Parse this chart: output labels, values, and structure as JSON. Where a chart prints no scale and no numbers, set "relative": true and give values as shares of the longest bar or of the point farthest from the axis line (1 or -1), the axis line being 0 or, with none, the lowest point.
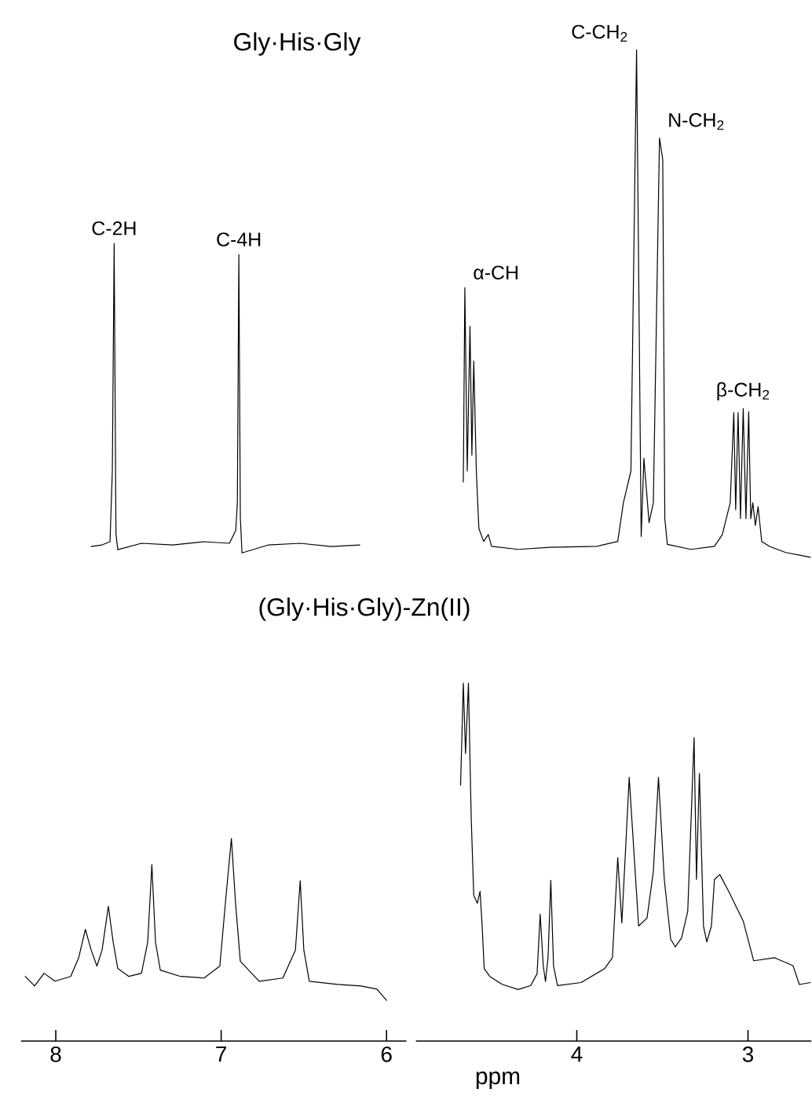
{
  "chart_data": [
    {
      "type": "line",
      "relative": true,
      "xlim": [
        8.21,
        5.88
      ],
      "xticks": [
        8,
        7,
        6
      ],
      "series": [
        {
          "color": "#000000",
          "x": [
            7.786,
            7.72,
            7.672,
            7.658,
            7.647,
            7.636,
            7.625,
            7.482,
            7.292,
            7.103,
            6.95,
            6.912,
            6.902,
            6.893,
            6.884,
            6.874,
            6.713,
            6.523,
            6.333,
            6.162
          ],
          "values": [
            0.62,
            0.622,
            0.626,
            0.715,
            1.0,
            0.636,
            0.616,
            0.624,
            0.622,
            0.626,
            0.624,
            0.64,
            0.675,
            0.986,
            0.656,
            0.612,
            0.622,
            0.624,
            0.62,
            0.622
          ]
        },
        {
          "color": "#000000",
          "x": [
            8.185,
            8.128,
            8.071,
            8.005,
            7.91,
            7.862,
            7.821,
            7.786,
            7.751,
            7.72,
            7.682,
            7.653,
            7.625,
            7.558,
            7.482,
            7.444,
            7.419,
            7.397,
            7.368,
            7.245,
            7.103,
            7.008,
            6.97,
            6.938,
            6.913,
            6.884,
            6.77,
            6.627,
            6.551,
            6.522,
            6.5,
            6.467,
            6.295,
            6.153,
            6.058,
            6.0
          ],
          "values": [
            0.081,
            0.069,
            0.085,
            0.075,
            0.081,
            0.104,
            0.14,
            0.114,
            0.094,
            0.114,
            0.169,
            0.124,
            0.091,
            0.081,
            0.085,
            0.124,
            0.221,
            0.124,
            0.089,
            0.081,
            0.079,
            0.094,
            0.183,
            0.254,
            0.173,
            0.1,
            0.075,
            0.079,
            0.114,
            0.201,
            0.114,
            0.075,
            0.071,
            0.069,
            0.065,
            0.051
          ]
        }
      ],
      "annotations": [
        {
          "text": "C-2H",
          "x": 7.647,
          "y": 1
        },
        {
          "text": "C-4H",
          "x": 6.893,
          "y": 0.986
        },
        "Gly·His·Gly",
        "(Gly·His·Gly)-Zn(II)"
      ]
    },
    {
      "type": "line",
      "xlabel": "ppm",
      "relative": true,
      "xlim": [
        4.94,
        2.63
      ],
      "xticks": [
        4,
        3
      ],
      "series": [
        {
          "color": "#000000",
          "x": [
            4.663,
            4.654,
            4.64,
            4.624,
            4.613,
            4.602,
            4.587,
            4.572,
            4.544,
            4.517,
            4.498,
            4.342,
            4.159,
            3.883,
            3.761,
            3.728,
            3.684,
            3.651,
            3.624,
            3.608,
            3.578,
            3.553,
            3.517,
            3.498,
            3.486,
            3.471,
            3.333,
            3.196,
            3.15,
            3.104,
            3.083,
            3.072,
            3.058,
            3.044,
            3.028,
            3.012,
            2.996,
            2.984,
            2.972,
            2.957,
            2.941,
            2.92,
            2.874,
            2.783,
            2.636
          ],
          "values": [
            0.564,
            0.76,
            0.575,
            0.721,
            0.591,
            0.686,
            0.575,
            0.517,
            0.504,
            0.511,
            0.499,
            0.496,
            0.498,
            0.499,
            0.504,
            0.543,
            0.575,
            1.0,
            0.509,
            0.588,
            0.523,
            0.543,
            0.911,
            0.889,
            0.527,
            0.501,
            0.496,
            0.499,
            0.511,
            0.543,
            0.634,
            0.536,
            0.634,
            0.527,
            0.638,
            0.527,
            0.635,
            0.527,
            0.543,
            0.52,
            0.539,
            0.504,
            0.499,
            0.493,
            0.488
          ]
        },
        {
          "color": "#000000",
          "x": [
            4.679,
            4.663,
            4.65,
            4.633,
            4.617,
            4.602,
            4.581,
            4.565,
            4.553,
            4.541,
            4.507,
            4.434,
            4.342,
            4.269,
            4.232,
            4.214,
            4.196,
            4.183,
            4.168,
            4.152,
            4.136,
            4.113,
            3.975,
            3.838,
            3.792,
            3.761,
            3.737,
            3.694,
            3.639,
            3.59,
            3.553,
            3.523,
            3.489,
            3.452,
            3.425,
            3.388,
            3.352,
            3.315,
            3.301,
            3.284,
            3.26,
            3.241,
            3.214,
            3.196,
            3.165,
            3.113,
            3.028,
            2.967,
            2.844,
            2.737,
            2.7,
            2.636
          ],
          "values": [
            0.258,
            0.361,
            0.29,
            0.361,
            0.226,
            0.147,
            0.139,
            0.151,
            0.116,
            0.073,
            0.065,
            0.057,
            0.052,
            0.056,
            0.068,
            0.128,
            0.076,
            0.06,
            0.084,
            0.162,
            0.076,
            0.056,
            0.059,
            0.073,
            0.084,
            0.185,
            0.119,
            0.266,
            0.116,
            0.124,
            0.171,
            0.266,
            0.163,
            0.103,
            0.095,
            0.104,
            0.131,
            0.306,
            0.163,
            0.27,
            0.116,
            0.1,
            0.116,
            0.163,
            0.168,
            0.151,
            0.121,
            0.081,
            0.084,
            0.076,
            0.057,
            0.059
          ]
        }
      ],
      "annotations": [
        {
          "text": "α-CH",
          "x": 4.654,
          "y": 0.76
        },
        {
          "text": "C-CH$_{2}$",
          "x": 3.651,
          "y": 1
        },
        {
          "text": "N-CH$_{2}$",
          "x": 3.517,
          "y": 0.911
        },
        {
          "text": "β-CH$_{2}$",
          "x": 3.028,
          "y": 0.638
        }
      ]
    }
  ]
}
